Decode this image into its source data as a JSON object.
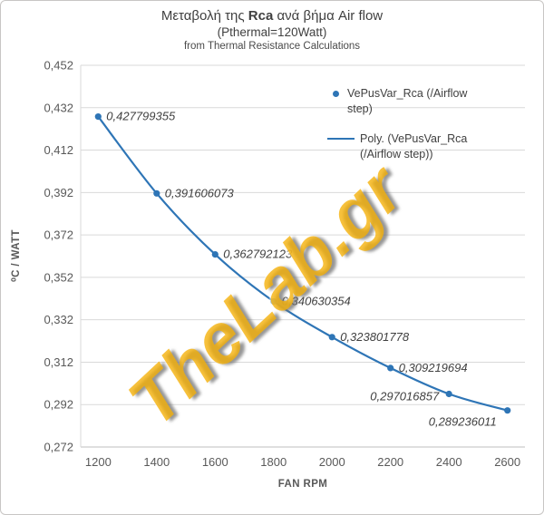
{
  "title": {
    "prefix": "Μεταβολή της ",
    "bold": "Rca",
    "suffix": " ανά βήμα Air flow",
    "line2": "(Pthermal=120Watt)",
    "line3": "from Thermal Resistance Calculations"
  },
  "legend": {
    "series": "VePusVar_Rca (/Airflow step)",
    "trendline": "Poly. (VePusVar_Rca (/Airflow step))"
  },
  "watermark": "TheLab.gr",
  "colors": {
    "series": "#2E75B6",
    "grid": "#D9D9D9",
    "axis_line": "#BFBFBF",
    "axis_text": "#595959",
    "title_text": "#404040",
    "watermark": "#F5B005"
  },
  "chart_data": {
    "type": "scatter",
    "title": "Μεταβολή της Rca ανά βήμα Air flow",
    "subtitle": "(Pthermal=120Watt)",
    "note": "from Thermal Resistance Calculations",
    "xlabel": "FAN RPM",
    "ylabel": "⁰C / WATT",
    "x": [
      1200,
      1400,
      1600,
      1800,
      2000,
      2200,
      2400,
      2600
    ],
    "values": [
      0.427799355,
      0.391606073,
      0.362792123,
      0.340630354,
      0.323801778,
      0.309219694,
      0.297016857,
      0.289236011
    ],
    "labels": [
      "0,427799355",
      "0,391606073",
      "0,362792123",
      "0,340630354",
      "0,323801778",
      "0,309219694",
      "0,297016857",
      "0,289236011"
    ],
    "label_placement": [
      "right",
      "right",
      "right",
      "right",
      "right",
      "right",
      "left",
      "below-left"
    ],
    "series_name": "VePusVar_Rca (/Airflow step)",
    "trendline": "polynomial",
    "trendline_name": "Poly. (VePusVar_Rca (/Airflow step))",
    "xlim": [
      1140,
      2660
    ],
    "ylim": [
      0.272,
      0.452
    ],
    "x_ticks": [
      1200,
      1400,
      1600,
      1800,
      2000,
      2200,
      2400,
      2600
    ],
    "y_ticks": [
      0.272,
      0.292,
      0.312,
      0.332,
      0.352,
      0.372,
      0.392,
      0.412,
      0.432,
      0.452
    ],
    "y_tick_labels": [
      "0,272",
      "0,292",
      "0,312",
      "0,332",
      "0,352",
      "0,372",
      "0,392",
      "0,412",
      "0,432",
      "0,452"
    ],
    "grid": "horizontal",
    "legend_position": "top-right"
  }
}
